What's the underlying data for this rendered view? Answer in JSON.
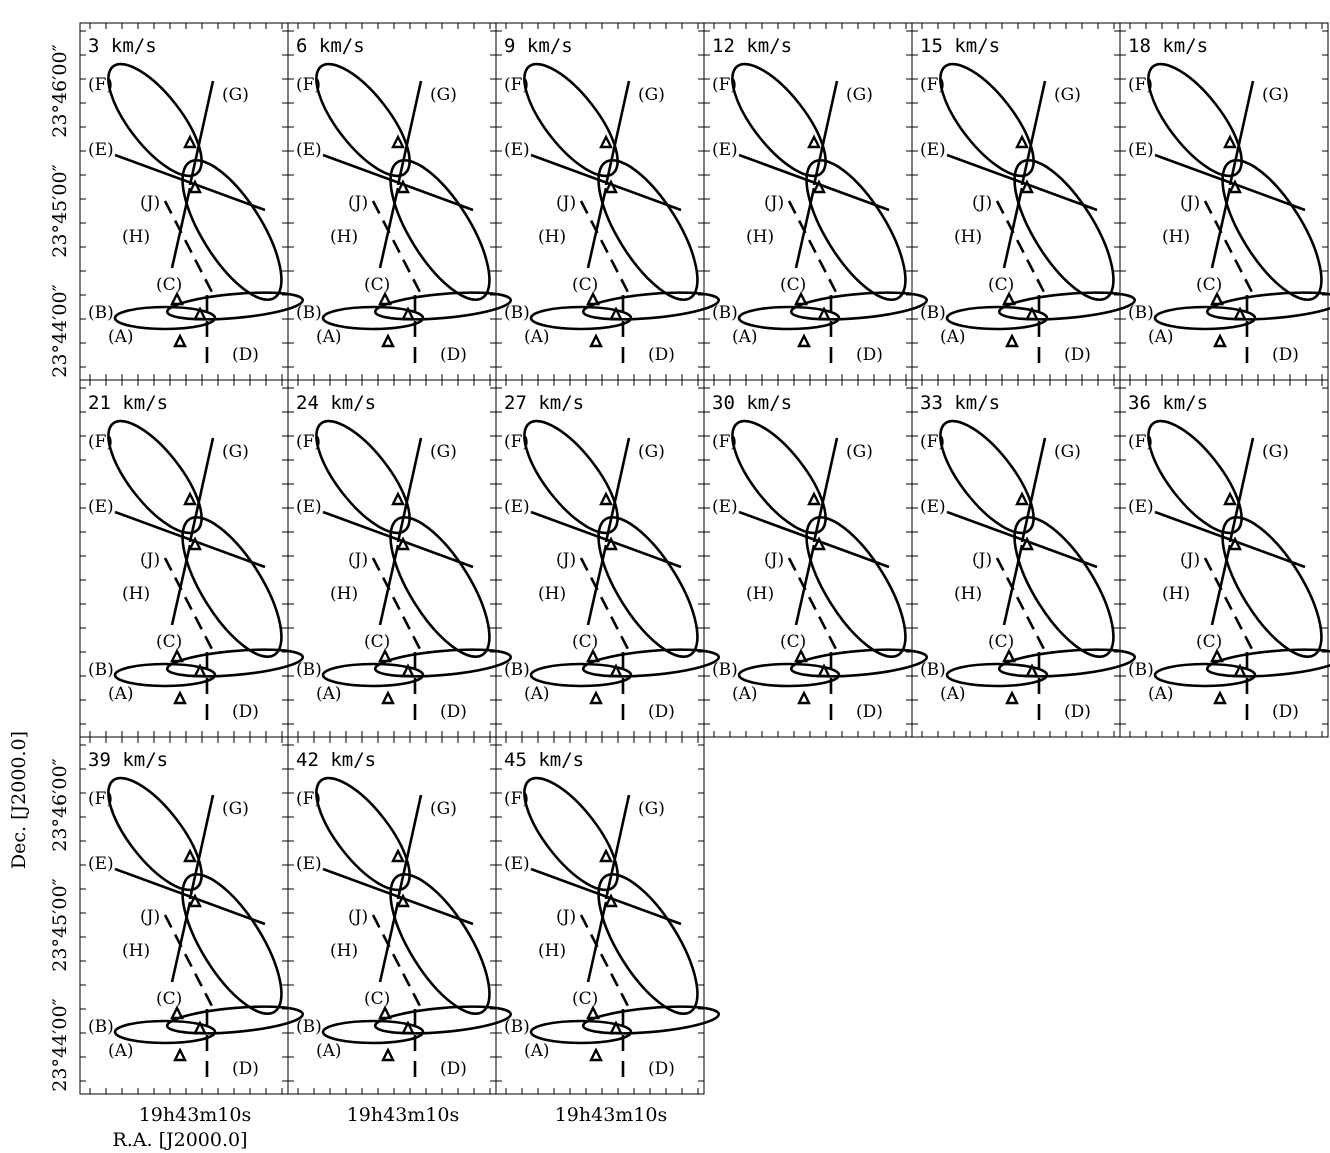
{
  "panels": [
    {
      "label": "3 km/s"
    },
    {
      "label": "6 km/s"
    },
    {
      "label": "9 km/s"
    },
    {
      "label": "12 km/s"
    },
    {
      "label": "15 km/s"
    },
    {
      "label": "18 km/s"
    },
    {
      "label": "21 km/s"
    },
    {
      "label": "24 km/s"
    },
    {
      "label": "27 km/s"
    },
    {
      "label": "30 km/s"
    },
    {
      "label": "33 km/s"
    },
    {
      "label": "36 km/s"
    },
    {
      "label": "39 km/s"
    },
    {
      "label": "42 km/s"
    },
    {
      "label": "45 km/s"
    }
  ],
  "region_labels": [
    "(F)",
    "(G)",
    "(E)",
    "(J)",
    "(H)",
    "(C)",
    "(B)",
    "(A)",
    "(D)"
  ],
  "dec_ticks": [
    "23°46′00″",
    "23°45′00″",
    "23°44′00″"
  ],
  "ra_tick": "19h43m10s",
  "x_axis_label": "R.A. [J2000.0]",
  "y_axis_label": "Dec. [J2000.0]"
}
